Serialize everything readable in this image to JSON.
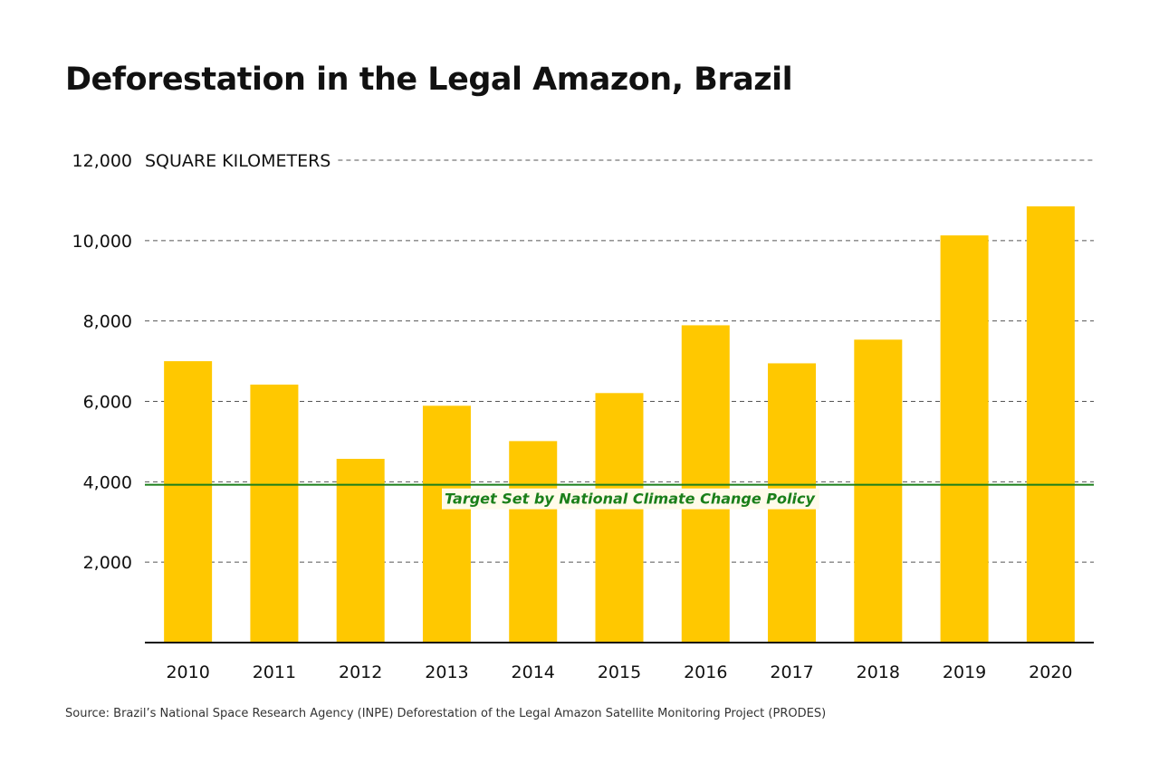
{
  "chart_data": {
    "type": "bar",
    "title": "Deforestation in the Legal Amazon, Brazil",
    "ylabel": "SQUARE KILOMETERS",
    "xlabel": "",
    "categories": [
      "2010",
      "2011",
      "2012",
      "2013",
      "2014",
      "2015",
      "2016",
      "2017",
      "2018",
      "2019",
      "2020"
    ],
    "values": [
      7000,
      6418,
      4571,
      5891,
      5012,
      6207,
      7893,
      6947,
      7536,
      10129,
      10851
    ],
    "ylim": [
      0,
      12000
    ],
    "yticks": [
      2000,
      4000,
      6000,
      8000,
      10000,
      12000
    ],
    "ytick_labels": [
      "2,000",
      "4,000",
      "6,000",
      "8,000",
      "10,000",
      "12,000"
    ],
    "grid": "horizontal dashed",
    "reference_line": {
      "value": 3925,
      "label": "Target Set by National Climate Change Policy",
      "color": "#1a7f1a"
    },
    "bar_color": "#FFC800",
    "source": "Source: Brazil’s National Space Research Agency (INPE) Deforestation of the Legal Amazon Satellite Monitoring Project (PRODES)"
  }
}
